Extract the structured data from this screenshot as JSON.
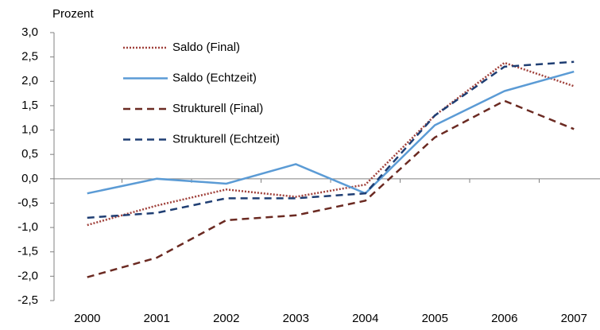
{
  "chart_data": {
    "type": "line",
    "y_label": "Prozent",
    "categories": [
      "2000",
      "2001",
      "2002",
      "2003",
      "2004",
      "2005",
      "2006",
      "2007"
    ],
    "series": [
      {
        "name": "Saldo (Final)",
        "color": "#a0413b",
        "dash": "dotted",
        "values": [
          -0.95,
          -0.55,
          -0.22,
          -0.37,
          -0.12,
          1.3,
          2.38,
          1.9
        ]
      },
      {
        "name": "Saldo (Echtzeit)",
        "color": "#5b9bd5",
        "dash": "solid",
        "values": [
          -0.3,
          0.0,
          -0.1,
          0.3,
          -0.3,
          1.1,
          1.8,
          2.2
        ]
      },
      {
        "name": "Strukturell (Final)",
        "color": "#6b2a22",
        "dash": "dashed",
        "values": [
          -2.02,
          -1.62,
          -0.85,
          -0.75,
          -0.45,
          0.85,
          1.6,
          1.02
        ]
      },
      {
        "name": "Strukturell (Echtzeit)",
        "color": "#1f3e73",
        "dash": "dashed",
        "values": [
          -0.8,
          -0.7,
          -0.4,
          -0.4,
          -0.3,
          1.3,
          2.3,
          2.4
        ]
      }
    ],
    "ylim": [
      -2.5,
      3.0
    ],
    "yticks": [
      {
        "value": -2.5,
        "label": "-2,5"
      },
      {
        "value": -2.0,
        "label": "-2,0"
      },
      {
        "value": -1.5,
        "label": "-1,5"
      },
      {
        "value": -1.0,
        "label": "-1,0"
      },
      {
        "value": -0.5,
        "label": "-0,5"
      },
      {
        "value": 0.0,
        "label": "0,0"
      },
      {
        "value": 0.5,
        "label": "0,5"
      },
      {
        "value": 1.0,
        "label": "1,0"
      },
      {
        "value": 1.5,
        "label": "1,5"
      },
      {
        "value": 2.0,
        "label": "2,0"
      },
      {
        "value": 2.5,
        "label": "2,5"
      },
      {
        "value": 3.0,
        "label": "3,0"
      }
    ],
    "legend": "top-left"
  }
}
